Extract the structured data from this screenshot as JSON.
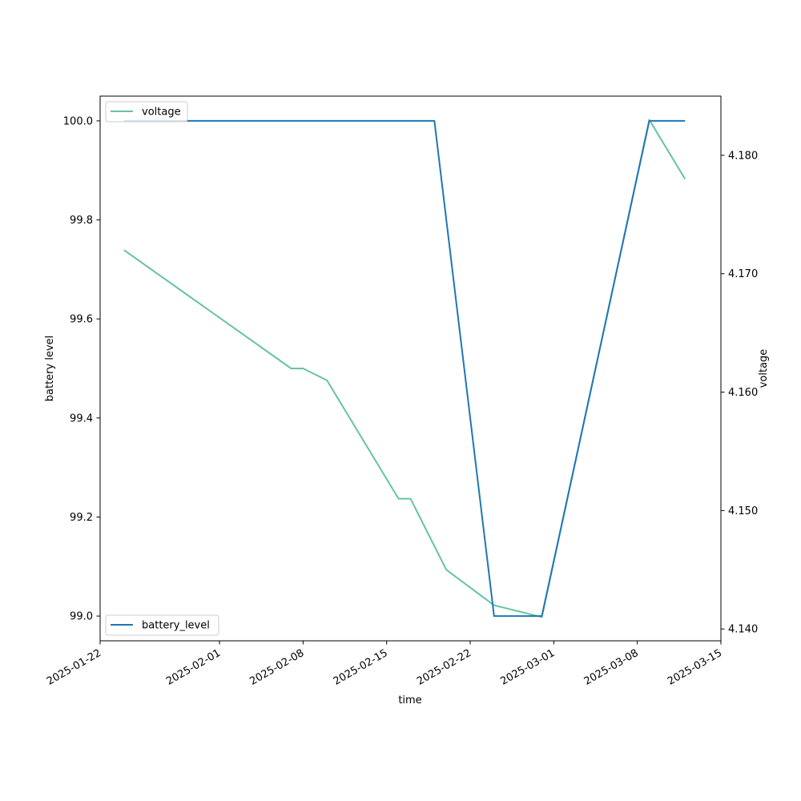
{
  "chart_data": {
    "type": "line",
    "title": "",
    "xlabel": "time",
    "ylabel": "battery level",
    "ylabel_right": "voltage",
    "x_ticks": [
      "2025-01-22",
      "2025-02-01",
      "2025-02-08",
      "2025-02-15",
      "2025-02-22",
      "2025-03-01",
      "2025-03-08",
      "2025-03-15"
    ],
    "xlim": [
      "2025-01-22",
      "2025-03-15"
    ],
    "ylim": [
      98.95,
      100.05
    ],
    "ylim_right": [
      4.139,
      4.185
    ],
    "y_ticks": [
      "99.0",
      "99.2",
      "99.4",
      "99.6",
      "99.8",
      "100.0"
    ],
    "y_ticks_right": [
      "4.140",
      "4.150",
      "4.160",
      "4.170",
      "4.180"
    ],
    "grid": false,
    "series": [
      {
        "name": "battery_level",
        "axis": "left",
        "color": "#1f77b4",
        "legend_position": "lower-left",
        "points": [
          {
            "x": "2025-01-24",
            "y": 100.0
          },
          {
            "x": "2025-02-19",
            "y": 100.0
          },
          {
            "x": "2025-02-24",
            "y": 99.0
          },
          {
            "x": "2025-02-28",
            "y": 99.0
          },
          {
            "x": "2025-03-09",
            "y": 100.0
          },
          {
            "x": "2025-03-12",
            "y": 100.0
          }
        ]
      },
      {
        "name": "voltage",
        "axis": "right",
        "color": "#66c2a5",
        "legend_position": "upper-left",
        "points": [
          {
            "x": "2025-01-24",
            "y": 4.172
          },
          {
            "x": "2025-02-07",
            "y": 4.162
          },
          {
            "x": "2025-02-08",
            "y": 4.162
          },
          {
            "x": "2025-02-10",
            "y": 4.161
          },
          {
            "x": "2025-02-16",
            "y": 4.151
          },
          {
            "x": "2025-02-17",
            "y": 4.151
          },
          {
            "x": "2025-02-19",
            "y": 4.147
          },
          {
            "x": "2025-02-20",
            "y": 4.145
          },
          {
            "x": "2025-02-24",
            "y": 4.142
          },
          {
            "x": "2025-02-28",
            "y": 4.141
          },
          {
            "x": "2025-03-09",
            "y": 4.183
          },
          {
            "x": "2025-03-12",
            "y": 4.178
          }
        ]
      }
    ]
  }
}
